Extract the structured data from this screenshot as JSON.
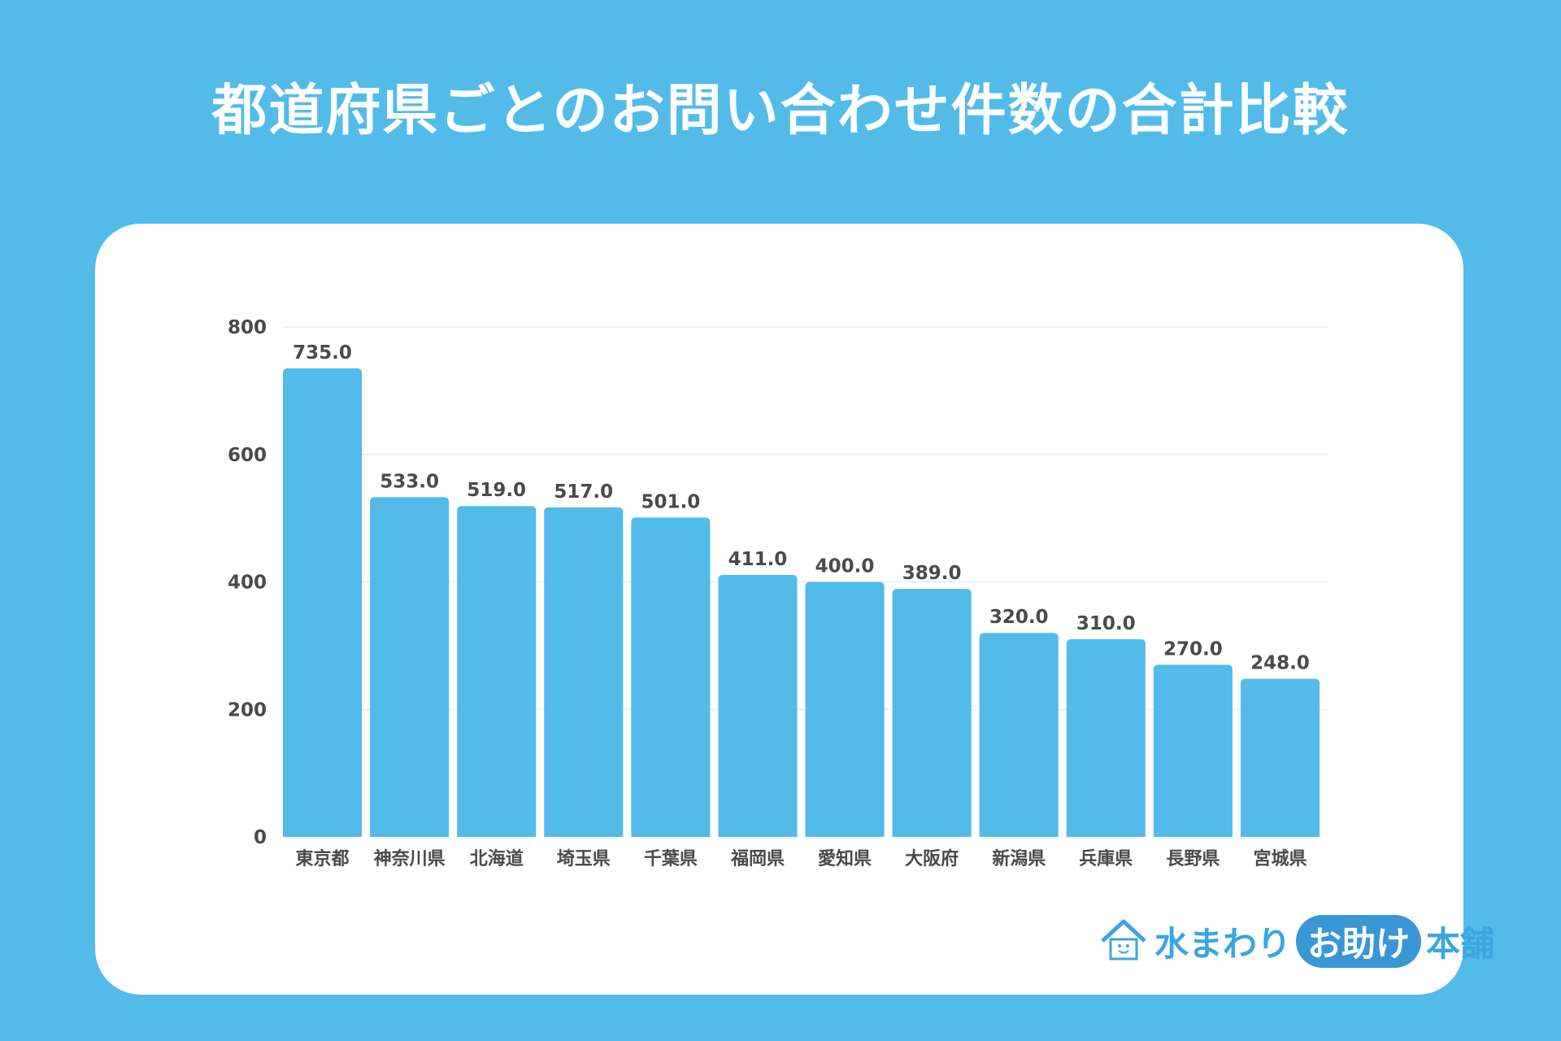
{
  "chart_data": {
    "type": "bar",
    "title": "都道府県ごとのお問い合わせ件数の合計比較",
    "categories": [
      "東京都",
      "神奈川県",
      "北海道",
      "埼玉県",
      "千葉県",
      "福岡県",
      "愛知県",
      "大阪府",
      "新潟県",
      "兵庫県",
      "長野県",
      "宮城県"
    ],
    "values": [
      735.0,
      533.0,
      519.0,
      517.0,
      501.0,
      411.0,
      400.0,
      389.0,
      320.0,
      310.0,
      270.0,
      248.0
    ],
    "value_labels": [
      "735.0",
      "533.0",
      "519.0",
      "517.0",
      "501.0",
      "411.0",
      "400.0",
      "389.0",
      "320.0",
      "310.0",
      "270.0",
      "248.0"
    ],
    "xlabel": "",
    "ylabel": "",
    "ylim": [
      0,
      800
    ],
    "yticks": [
      0,
      200,
      400,
      600,
      800
    ],
    "grid": true,
    "bar_color": "#53bbe9"
  },
  "logo": {
    "part1": "水まわり",
    "part2": "お助け",
    "part3": "本舗"
  },
  "colors": {
    "background": "#53bbe9",
    "text": "#4a4a4a"
  }
}
